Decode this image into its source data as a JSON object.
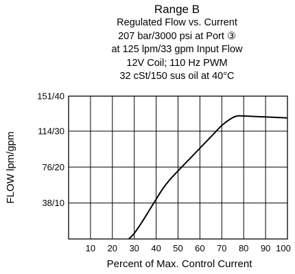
{
  "chart_data": {
    "type": "line",
    "title": "Range B",
    "subtitle": [
      "Regulated Flow vs. Current",
      "207 bar/3000 psi at Port ③",
      "at 125 lpm/33 gpm Input Flow",
      "12V Coil; 110 Hz PWM",
      "32 cSt/150 sus oil at 40°C"
    ],
    "xlabel": "Percent of Max. Control Current",
    "ylabel": "FLOW lpm/gpm",
    "xlim": [
      0,
      100
    ],
    "ylim": [
      0,
      151
    ],
    "x_ticks": [
      10,
      20,
      30,
      40,
      50,
      60,
      70,
      80,
      90,
      100
    ],
    "x_tick_labels": [
      "10",
      "20",
      "30",
      "40",
      "50",
      "60",
      "70",
      "80",
      "90",
      "100"
    ],
    "y_ticks": [
      38,
      76,
      114,
      151
    ],
    "y_tick_labels": [
      "38/10",
      "76/20",
      "114/30",
      "151/40"
    ],
    "grid": true,
    "series": [
      {
        "x": [
          27.5,
          30,
          33,
          36,
          40,
          43,
          46,
          50,
          55,
          60,
          65,
          70,
          74,
          77,
          80,
          85,
          90,
          95,
          100
        ],
        "y": [
          0,
          6,
          16,
          27,
          42,
          53,
          62,
          72,
          84,
          96,
          108,
          120,
          127,
          130,
          130,
          129.5,
          129,
          128.5,
          128
        ]
      }
    ]
  }
}
